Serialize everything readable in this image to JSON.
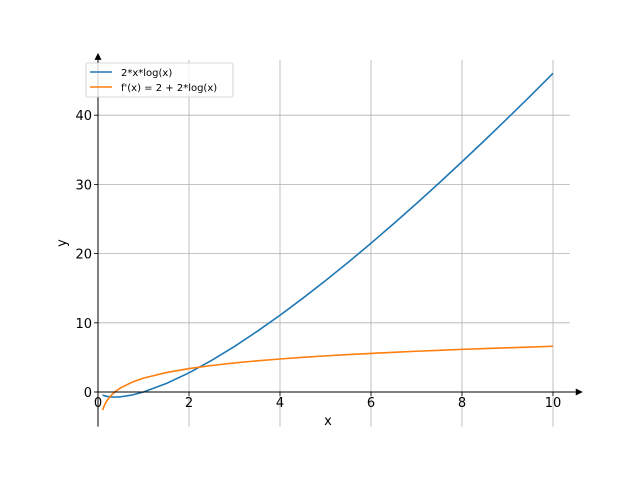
{
  "chart_data": {
    "type": "line",
    "title": "",
    "xlabel": "x",
    "ylabel": "y",
    "xlim": [
      0,
      10.5
    ],
    "ylim": [
      -5,
      48
    ],
    "xticks": [
      0,
      2,
      4,
      6,
      8,
      10
    ],
    "yticks": [
      0,
      10,
      20,
      30,
      40
    ],
    "xtick_labels": [
      "0",
      "2",
      "4",
      "6",
      "8",
      "10"
    ],
    "ytick_labels": [
      "0",
      "10",
      "20",
      "30",
      "40"
    ],
    "grid": true,
    "legend_position": "top-left",
    "series": [
      {
        "name": "2*x*log(x)",
        "color": "#1f77b4",
        "x": [
          0.1,
          0.2,
          0.3,
          0.368,
          0.5,
          0.75,
          1.0,
          1.5,
          2.0,
          2.5,
          3.0,
          3.5,
          4.0,
          4.5,
          5.0,
          5.5,
          6.0,
          6.5,
          7.0,
          7.5,
          8.0,
          8.5,
          9.0,
          9.5,
          10.0
        ],
        "y": [
          -0.46,
          -0.64,
          -0.72,
          -0.74,
          -0.69,
          -0.43,
          0.0,
          1.22,
          2.77,
          4.58,
          6.59,
          8.77,
          11.09,
          13.54,
          16.09,
          18.75,
          21.5,
          24.33,
          27.24,
          30.22,
          33.27,
          36.38,
          39.55,
          42.77,
          46.05
        ]
      },
      {
        "name": "f'(x) = 2 + 2*log(x)",
        "color": "#ff7f0e",
        "x": [
          0.1,
          0.15,
          0.2,
          0.3,
          0.4,
          0.5,
          0.75,
          1.0,
          1.5,
          2.0,
          2.5,
          3.0,
          3.5,
          4.0,
          4.5,
          5.0,
          5.5,
          6.0,
          6.5,
          7.0,
          7.5,
          8.0,
          8.5,
          9.0,
          9.5,
          10.0
        ],
        "y": [
          -2.61,
          -1.79,
          -1.22,
          -0.41,
          0.17,
          0.61,
          1.42,
          2.0,
          2.81,
          3.39,
          3.83,
          4.2,
          4.51,
          4.77,
          5.01,
          5.22,
          5.41,
          5.58,
          5.74,
          5.89,
          6.03,
          6.16,
          6.28,
          6.39,
          6.5,
          6.61
        ]
      }
    ]
  }
}
